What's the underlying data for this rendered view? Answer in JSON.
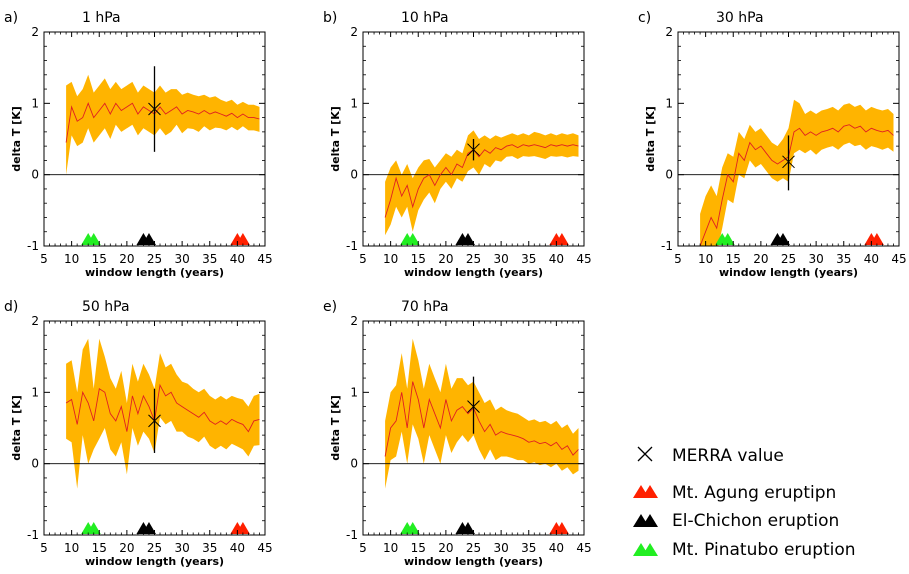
{
  "colors": {
    "band": "#FFB400",
    "line": "#E02020",
    "axis": "#000000",
    "agung": "#FF2000",
    "elchichon": "#000000",
    "pinatubo": "#22EE22"
  },
  "legend": {
    "merra": "MERRA value",
    "agung": "Mt. Agung eruptipn",
    "elchichon": "El-Chichon eruption",
    "pinatubo": "Mt. Pinatubo eruption"
  },
  "chart_data": [
    {
      "type": "area",
      "panel": "a)",
      "title": "1 hPa",
      "xlabel": "window length (years)",
      "ylabel": "delta T [K]",
      "xlim": [
        5,
        45
      ],
      "ylim": [
        -1,
        2
      ],
      "xticks": [
        "5",
        "10",
        "15",
        "20",
        "25",
        "30",
        "35",
        "40",
        "45"
      ],
      "yticks": [
        "-1",
        "0",
        "1",
        "2"
      ],
      "x": [
        9,
        10,
        11,
        12,
        13,
        14,
        15,
        16,
        17,
        18,
        19,
        20,
        21,
        22,
        23,
        24,
        25,
        26,
        27,
        28,
        29,
        30,
        31,
        32,
        33,
        34,
        35,
        36,
        37,
        38,
        39,
        40,
        41,
        42,
        43,
        44
      ],
      "mean": [
        0.45,
        0.95,
        0.75,
        0.8,
        1.0,
        0.8,
        0.9,
        1.0,
        0.85,
        1.0,
        0.9,
        0.95,
        1.0,
        0.85,
        0.95,
        0.9,
        0.85,
        0.95,
        0.85,
        0.9,
        0.95,
        0.85,
        0.9,
        0.88,
        0.85,
        0.9,
        0.85,
        0.88,
        0.85,
        0.82,
        0.86,
        0.8,
        0.85,
        0.8,
        0.8,
        0.78
      ],
      "upper": [
        1.25,
        1.3,
        1.1,
        1.2,
        1.4,
        1.15,
        1.25,
        1.35,
        1.2,
        1.3,
        1.2,
        1.25,
        1.3,
        1.15,
        1.25,
        1.2,
        1.15,
        1.25,
        1.15,
        1.2,
        1.2,
        1.12,
        1.15,
        1.12,
        1.1,
        1.12,
        1.08,
        1.1,
        1.05,
        1.02,
        1.05,
        0.98,
        1.02,
        0.98,
        0.98,
        0.95
      ],
      "lower": [
        0.0,
        0.55,
        0.4,
        0.45,
        0.65,
        0.45,
        0.55,
        0.65,
        0.5,
        0.7,
        0.6,
        0.65,
        0.7,
        0.55,
        0.65,
        0.6,
        0.55,
        0.65,
        0.55,
        0.6,
        0.7,
        0.58,
        0.65,
        0.64,
        0.6,
        0.68,
        0.62,
        0.66,
        0.65,
        0.62,
        0.67,
        0.62,
        0.68,
        0.62,
        0.62,
        0.6
      ],
      "merra": {
        "x": 25,
        "y": 0.92,
        "err_low": 0.32,
        "err_high": 1.52
      },
      "eruptions": {
        "pinatubo": [
          13,
          14
        ],
        "elchichon": [
          23,
          24
        ],
        "agung": [
          40,
          41
        ]
      }
    },
    {
      "type": "area",
      "panel": "b)",
      "title": "10 hPa",
      "xlabel": "window length (years)",
      "ylabel": "delta T [K]",
      "xlim": [
        5,
        45
      ],
      "ylim": [
        -1,
        2
      ],
      "xticks": [
        "5",
        "10",
        "15",
        "20",
        "25",
        "30",
        "35",
        "40",
        "45"
      ],
      "yticks": [
        "-1",
        "0",
        "1",
        "2"
      ],
      "x": [
        9,
        10,
        11,
        12,
        13,
        14,
        15,
        16,
        17,
        18,
        19,
        20,
        21,
        22,
        23,
        24,
        25,
        26,
        27,
        28,
        29,
        30,
        31,
        32,
        33,
        34,
        35,
        36,
        37,
        38,
        39,
        40,
        41,
        42,
        43,
        44
      ],
      "mean": [
        -0.6,
        -0.35,
        -0.05,
        -0.3,
        -0.15,
        -0.45,
        -0.2,
        -0.05,
        0.0,
        -0.15,
        0.0,
        0.1,
        0.0,
        0.15,
        0.1,
        0.3,
        0.35,
        0.25,
        0.35,
        0.3,
        0.38,
        0.35,
        0.4,
        0.42,
        0.38,
        0.42,
        0.4,
        0.42,
        0.4,
        0.38,
        0.42,
        0.4,
        0.42,
        0.4,
        0.42,
        0.4
      ],
      "upper": [
        -0.1,
        0.1,
        0.2,
        0.0,
        0.15,
        -0.05,
        0.1,
        0.2,
        0.22,
        0.1,
        0.2,
        0.3,
        0.25,
        0.35,
        0.3,
        0.55,
        0.62,
        0.5,
        0.55,
        0.5,
        0.55,
        0.52,
        0.55,
        0.58,
        0.55,
        0.58,
        0.55,
        0.6,
        0.58,
        0.55,
        0.58,
        0.55,
        0.58,
        0.56,
        0.58,
        0.55
      ],
      "lower": [
        -0.85,
        -0.7,
        -0.45,
        -0.6,
        -0.45,
        -0.8,
        -0.5,
        -0.35,
        -0.25,
        -0.4,
        -0.2,
        -0.1,
        -0.2,
        -0.05,
        -0.1,
        0.05,
        0.1,
        0.0,
        0.15,
        0.1,
        0.2,
        0.18,
        0.25,
        0.26,
        0.22,
        0.26,
        0.25,
        0.26,
        0.24,
        0.22,
        0.26,
        0.25,
        0.26,
        0.24,
        0.26,
        0.25
      ],
      "merra": {
        "x": 25,
        "y": 0.35,
        "err_low": 0.2,
        "err_high": 0.5
      },
      "eruptions": {
        "pinatubo": [
          13,
          14
        ],
        "elchichon": [
          23,
          24
        ],
        "agung": [
          40,
          41
        ]
      }
    },
    {
      "type": "area",
      "panel": "c)",
      "title": "30 hPa",
      "xlabel": "window length (years)",
      "ylabel": "delta T [K]",
      "xlim": [
        5,
        45
      ],
      "ylim": [
        -1,
        2
      ],
      "xticks": [
        "5",
        "10",
        "15",
        "20",
        "25",
        "30",
        "35",
        "40",
        "45"
      ],
      "yticks": [
        "-1",
        "0",
        "1",
        "2"
      ],
      "x": [
        9,
        10,
        11,
        12,
        13,
        14,
        15,
        16,
        17,
        18,
        19,
        20,
        21,
        22,
        23,
        24,
        25,
        26,
        27,
        28,
        29,
        30,
        31,
        32,
        33,
        34,
        35,
        36,
        37,
        38,
        39,
        40,
        41,
        42,
        43,
        44
      ],
      "mean": [
        -1.0,
        -0.8,
        -0.6,
        -0.75,
        -0.35,
        0.0,
        -0.1,
        0.3,
        0.2,
        0.45,
        0.35,
        0.4,
        0.3,
        0.2,
        0.15,
        0.2,
        0.25,
        0.6,
        0.65,
        0.55,
        0.6,
        0.55,
        0.6,
        0.62,
        0.65,
        0.6,
        0.68,
        0.7,
        0.65,
        0.68,
        0.6,
        0.65,
        0.62,
        0.6,
        0.62,
        0.55
      ],
      "upper": [
        -0.55,
        -0.3,
        -0.15,
        -0.3,
        0.1,
        0.3,
        0.25,
        0.6,
        0.5,
        0.7,
        0.6,
        0.65,
        0.55,
        0.45,
        0.4,
        0.5,
        0.65,
        1.05,
        1.0,
        0.85,
        0.9,
        0.85,
        0.9,
        0.92,
        0.95,
        0.9,
        0.98,
        1.0,
        0.95,
        0.98,
        0.9,
        0.95,
        0.92,
        0.9,
        0.92,
        0.85
      ],
      "lower": [
        -1.1,
        -1.1,
        -1.0,
        -1.1,
        -0.75,
        -0.35,
        -0.4,
        0.0,
        -0.05,
        0.2,
        0.1,
        0.15,
        0.05,
        -0.05,
        -0.1,
        -0.05,
        -0.1,
        0.3,
        0.35,
        0.3,
        0.35,
        0.28,
        0.35,
        0.38,
        0.4,
        0.35,
        0.42,
        0.45,
        0.4,
        0.42,
        0.35,
        0.4,
        0.38,
        0.35,
        0.38,
        0.32
      ],
      "merra": {
        "x": 25,
        "y": 0.18,
        "err_low": -0.22,
        "err_high": 0.55
      },
      "eruptions": {
        "pinatubo": [
          13,
          14
        ],
        "elchichon": [
          23,
          24
        ],
        "agung": [
          40,
          41
        ]
      }
    },
    {
      "type": "area",
      "panel": "d)",
      "title": "50 hPa",
      "xlabel": "window length (years)",
      "ylabel": "delta T [K]",
      "xlim": [
        5,
        45
      ],
      "ylim": [
        -1,
        2
      ],
      "xticks": [
        "5",
        "10",
        "15",
        "20",
        "25",
        "30",
        "35",
        "40",
        "45"
      ],
      "yticks": [
        "-1",
        "0",
        "1",
        "2"
      ],
      "x": [
        9,
        10,
        11,
        12,
        13,
        14,
        15,
        16,
        17,
        18,
        19,
        20,
        21,
        22,
        23,
        24,
        25,
        26,
        27,
        28,
        29,
        30,
        31,
        32,
        33,
        34,
        35,
        36,
        37,
        38,
        39,
        40,
        41,
        42,
        43,
        44
      ],
      "mean": [
        0.85,
        0.9,
        0.55,
        1.0,
        0.85,
        0.6,
        1.05,
        1.0,
        0.7,
        0.6,
        0.8,
        0.45,
        0.95,
        0.7,
        0.95,
        0.8,
        0.6,
        1.1,
        0.95,
        1.0,
        0.85,
        0.8,
        0.75,
        0.7,
        0.65,
        0.72,
        0.6,
        0.55,
        0.6,
        0.55,
        0.62,
        0.58,
        0.55,
        0.45,
        0.6,
        0.62
      ],
      "upper": [
        1.4,
        1.45,
        1.0,
        1.6,
        1.75,
        1.05,
        1.75,
        1.5,
        1.2,
        1.05,
        1.3,
        0.85,
        1.4,
        1.15,
        1.4,
        1.25,
        1.05,
        1.55,
        1.35,
        1.4,
        1.25,
        1.15,
        1.12,
        1.05,
        1.0,
        1.05,
        0.95,
        0.9,
        0.95,
        0.9,
        0.95,
        0.92,
        0.9,
        0.8,
        0.95,
        0.98
      ],
      "lower": [
        0.35,
        0.3,
        -0.35,
        0.4,
        0.0,
        0.2,
        0.35,
        0.5,
        0.2,
        0.1,
        0.3,
        -0.15,
        0.5,
        0.25,
        0.45,
        0.35,
        0.15,
        0.65,
        0.55,
        0.6,
        0.45,
        0.45,
        0.38,
        0.35,
        0.3,
        0.38,
        0.25,
        0.2,
        0.25,
        0.2,
        0.28,
        0.24,
        0.2,
        0.1,
        0.25,
        0.26
      ],
      "merra": {
        "x": 25,
        "y": 0.6,
        "err_low": 0.15,
        "err_high": 1.05
      },
      "eruptions": {
        "pinatubo": [
          13,
          14
        ],
        "elchichon": [
          23,
          24
        ],
        "agung": [
          40,
          41
        ]
      }
    },
    {
      "type": "area",
      "panel": "e)",
      "title": "70 hPa",
      "xlabel": "window length (years)",
      "ylabel": "delta T [K]",
      "xlim": [
        5,
        45
      ],
      "ylim": [
        -1,
        2
      ],
      "xticks": [
        "5",
        "10",
        "15",
        "20",
        "25",
        "30",
        "35",
        "40",
        "45"
      ],
      "yticks": [
        "-1",
        "0",
        "1",
        "2"
      ],
      "x": [
        9,
        10,
        11,
        12,
        13,
        14,
        15,
        16,
        17,
        18,
        19,
        20,
        21,
        22,
        23,
        24,
        25,
        26,
        27,
        28,
        29,
        30,
        31,
        32,
        33,
        34,
        35,
        36,
        37,
        38,
        39,
        40,
        41,
        42,
        43,
        44
      ],
      "mean": [
        0.1,
        0.5,
        0.6,
        1.0,
        0.5,
        1.15,
        0.9,
        0.5,
        0.9,
        0.7,
        0.5,
        0.9,
        0.6,
        0.75,
        0.8,
        0.7,
        0.78,
        0.6,
        0.45,
        0.55,
        0.4,
        0.45,
        0.42,
        0.4,
        0.38,
        0.35,
        0.3,
        0.32,
        0.28,
        0.3,
        0.25,
        0.3,
        0.2,
        0.25,
        0.12,
        0.2
      ],
      "upper": [
        0.6,
        1.0,
        1.1,
        1.55,
        1.05,
        1.75,
        1.45,
        1.05,
        1.4,
        1.2,
        1.0,
        1.4,
        1.05,
        1.2,
        1.2,
        1.1,
        1.15,
        1.0,
        0.85,
        0.9,
        0.75,
        0.8,
        0.75,
        0.72,
        0.7,
        0.65,
        0.6,
        0.62,
        0.58,
        0.6,
        0.55,
        0.6,
        0.5,
        0.55,
        0.42,
        0.5
      ],
      "lower": [
        -0.35,
        0.05,
        0.1,
        0.45,
        0.0,
        0.55,
        0.35,
        0.0,
        0.4,
        0.2,
        0.0,
        0.4,
        0.15,
        0.3,
        0.4,
        0.3,
        0.4,
        0.2,
        0.05,
        0.2,
        0.05,
        0.1,
        0.1,
        0.08,
        0.05,
        0.05,
        0.0,
        0.02,
        -0.02,
        0.0,
        -0.05,
        0.0,
        -0.1,
        -0.05,
        -0.15,
        -0.1
      ],
      "merra": {
        "x": 25,
        "y": 0.8,
        "err_low": 0.42,
        "err_high": 1.22
      },
      "eruptions": {
        "pinatubo": [
          13,
          14
        ],
        "elchichon": [
          23,
          24
        ],
        "agung": [
          40,
          41
        ]
      }
    }
  ]
}
